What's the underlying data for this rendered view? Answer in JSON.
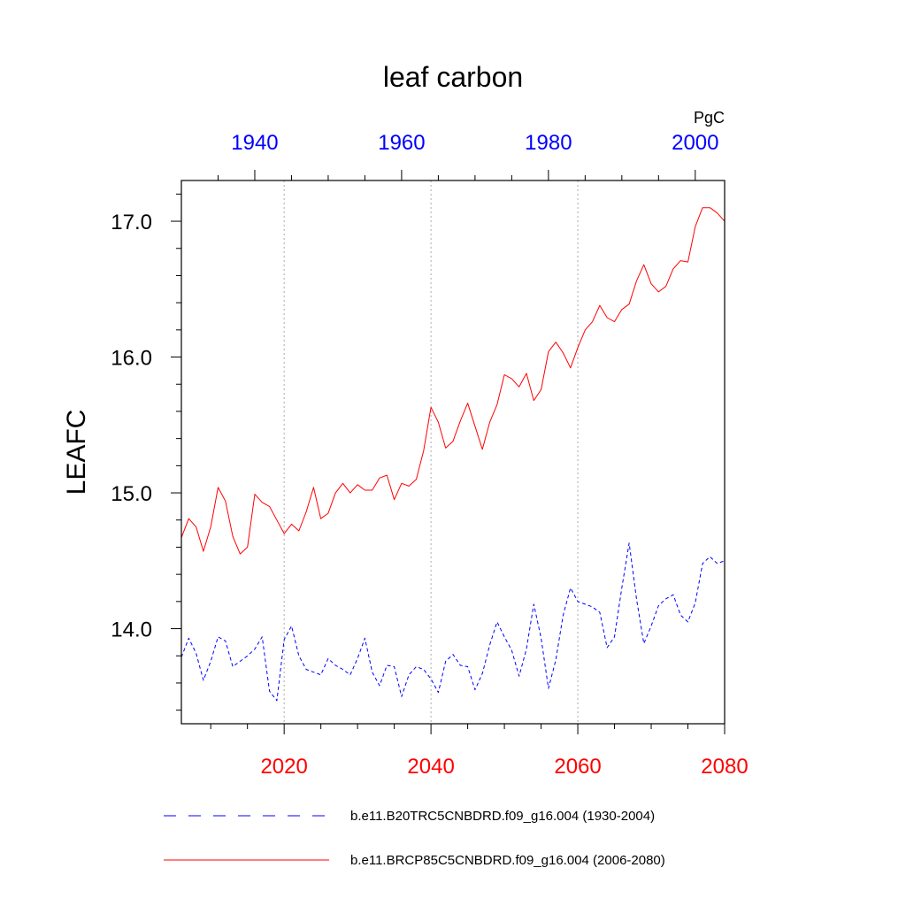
{
  "chart_data": {
    "type": "line",
    "title": "leaf carbon",
    "ylabel": "LEAFC",
    "units": "PgC",
    "ylim": [
      13.3,
      17.3
    ],
    "yticks": [
      14.0,
      15.0,
      16.0,
      17.0
    ],
    "ytick_labels": [
      "14.0",
      "15.0",
      "16.0",
      "17.0"
    ],
    "bottom_axis": {
      "range": [
        2006,
        2080
      ],
      "ticks": [
        2020,
        2040,
        2060,
        2080
      ],
      "tick_labels": [
        "2020",
        "2040",
        "2060",
        "2080"
      ],
      "color": "#ff0000"
    },
    "top_axis": {
      "range": [
        1930,
        2004
      ],
      "ticks": [
        1940,
        1960,
        1980,
        2000
      ],
      "tick_labels": [
        "1940",
        "1960",
        "1980",
        "2000"
      ],
      "color": "#0000ff"
    },
    "grid": "vertical dotted lines at bottom-axis major ticks",
    "legend_position": "bottom",
    "series": [
      {
        "name": "b.e11.B20TRC5CNBDRD.f09_g16.004 (1930-2004)",
        "color": "#0000ff",
        "style": "dashed",
        "x_start": 1930,
        "values": [
          13.79,
          13.93,
          13.82,
          13.62,
          13.76,
          13.94,
          13.91,
          13.72,
          13.76,
          13.8,
          13.85,
          13.94,
          13.54,
          13.47,
          13.92,
          14.02,
          13.8,
          13.7,
          13.68,
          13.66,
          13.78,
          13.73,
          13.7,
          13.66,
          13.78,
          13.93,
          13.68,
          13.58,
          13.73,
          13.72,
          13.5,
          13.66,
          13.72,
          13.7,
          13.63,
          13.53,
          13.76,
          13.81,
          13.73,
          13.72,
          13.55,
          13.67,
          13.88,
          14.05,
          13.94,
          13.84,
          13.65,
          13.85,
          14.18,
          13.93,
          13.56,
          13.77,
          14.1,
          14.3,
          14.2,
          14.18,
          14.16,
          14.12,
          13.86,
          13.94,
          14.3,
          14.63,
          14.22,
          13.89,
          14.02,
          14.17,
          14.22,
          14.25,
          14.1,
          14.05,
          14.19,
          14.48,
          14.53,
          14.48,
          14.5
        ]
      },
      {
        "name": "b.e11.BRCP85C5CNBDRD.f09_g16.004 (2006-2080)",
        "color": "#ff0000",
        "style": "solid",
        "x_start": 2006,
        "values": [
          14.67,
          14.81,
          14.75,
          14.57,
          14.75,
          15.04,
          14.94,
          14.68,
          14.55,
          14.6,
          14.99,
          14.93,
          14.9,
          14.8,
          14.7,
          14.77,
          14.72,
          14.86,
          15.04,
          14.81,
          14.85,
          15.0,
          15.07,
          15.0,
          15.06,
          15.02,
          15.02,
          15.11,
          15.13,
          14.95,
          15.07,
          15.05,
          15.1,
          15.31,
          15.63,
          15.52,
          15.33,
          15.38,
          15.53,
          15.66,
          15.49,
          15.32,
          15.52,
          15.65,
          15.87,
          15.84,
          15.78,
          15.88,
          15.68,
          15.76,
          16.04,
          16.11,
          16.03,
          15.92,
          16.07,
          16.2,
          16.26,
          16.38,
          16.29,
          16.26,
          16.35,
          16.39,
          16.56,
          16.68,
          16.54,
          16.48,
          16.52,
          16.65,
          16.71,
          16.7,
          16.96,
          17.1,
          17.1,
          17.06,
          17.0
        ]
      }
    ]
  }
}
